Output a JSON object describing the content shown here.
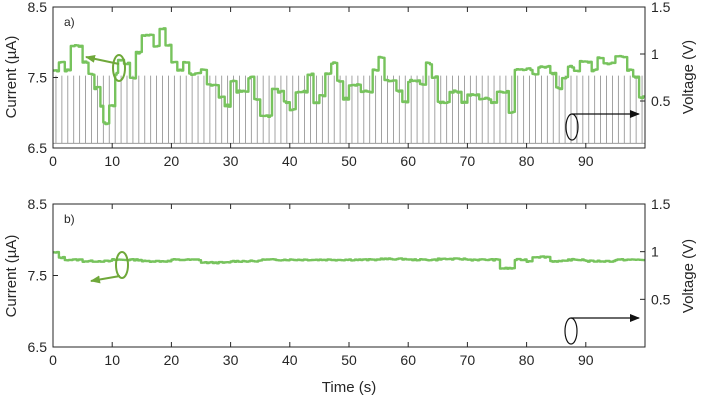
{
  "figure": {
    "xlabel": "Time (s)",
    "current_label": "Current (µA)",
    "voltage_label": "Voltage (V)"
  },
  "colors": {
    "current": "#77c35d",
    "arrow_current": "#6fa83a",
    "voltage": "#8c8c8c",
    "axes": "#262626"
  },
  "chart_data": [
    {
      "type": "line",
      "panel_label": "a)",
      "x_range": [
        0,
        100
      ],
      "xlabel": "",
      "ylabel": "Current (µA)",
      "ylim": [
        6.5,
        8.5
      ],
      "yticks": [
        6.5,
        7.5,
        8.5
      ],
      "y2label": "Voltage (V)",
      "y2lim": [
        0,
        1.5
      ],
      "y2ticks": [
        0.5,
        1,
        1.5
      ],
      "xticks": [
        0,
        10,
        20,
        30,
        40,
        50,
        60,
        70,
        80,
        90
      ],
      "current_steps": [
        [
          0,
          7.6
        ],
        [
          1,
          7.72
        ],
        [
          2,
          7.6
        ],
        [
          3,
          7.95
        ],
        [
          5,
          7.72
        ],
        [
          6,
          7.55
        ],
        [
          7,
          7.35
        ],
        [
          8,
          7.1
        ],
        [
          8.5,
          6.85
        ],
        [
          9.5,
          7.1
        ],
        [
          10.5,
          7.55
        ],
        [
          11,
          7.75
        ],
        [
          12,
          7.7
        ],
        [
          13,
          7.5
        ],
        [
          14,
          7.85
        ],
        [
          15,
          8.1
        ],
        [
          17,
          7.95
        ],
        [
          18,
          8.2
        ],
        [
          19,
          7.95
        ],
        [
          20,
          7.72
        ],
        [
          21,
          7.6
        ],
        [
          22,
          7.72
        ],
        [
          23,
          7.55
        ],
        [
          25,
          7.6
        ],
        [
          26,
          7.4
        ],
        [
          28,
          7.22
        ],
        [
          29,
          7.1
        ],
        [
          30,
          7.45
        ],
        [
          31,
          7.3
        ],
        [
          33,
          7.5
        ],
        [
          34,
          7.2
        ],
        [
          35,
          6.95
        ],
        [
          37,
          7.35
        ],
        [
          38,
          7.3
        ],
        [
          39,
          7.15
        ],
        [
          40,
          7.05
        ],
        [
          41,
          7.3
        ],
        [
          43,
          7.55
        ],
        [
          44,
          7.15
        ],
        [
          45,
          7.25
        ],
        [
          46,
          7.55
        ],
        [
          47,
          7.7
        ],
        [
          48,
          7.45
        ],
        [
          49,
          7.2
        ],
        [
          50,
          7.4
        ],
        [
          52,
          7.3
        ],
        [
          54,
          7.6
        ],
        [
          55,
          7.78
        ],
        [
          56,
          7.45
        ],
        [
          58,
          7.3
        ],
        [
          59,
          7.15
        ],
        [
          60,
          7.45
        ],
        [
          62,
          7.4
        ],
        [
          63,
          7.7
        ],
        [
          64,
          7.5
        ],
        [
          65,
          7.15
        ],
        [
          67,
          7.3
        ],
        [
          69,
          7.15
        ],
        [
          70,
          7.25
        ],
        [
          72,
          7.2
        ],
        [
          74,
          7.15
        ],
        [
          75,
          7.3
        ],
        [
          77,
          7.0
        ],
        [
          78,
          7.62
        ],
        [
          79,
          7.62
        ],
        [
          81,
          7.55
        ],
        [
          82,
          7.65
        ],
        [
          84,
          7.55
        ],
        [
          85,
          7.35
        ],
        [
          86,
          7.5
        ],
        [
          87,
          7.65
        ],
        [
          88,
          7.6
        ],
        [
          89,
          7.72
        ],
        [
          91,
          7.6
        ],
        [
          92,
          7.78
        ],
        [
          93,
          7.7
        ],
        [
          95,
          7.8
        ],
        [
          97,
          7.6
        ],
        [
          98,
          7.5
        ],
        [
          99,
          7.22
        ],
        [
          100,
          7.22
        ]
      ],
      "voltage_pulses": {
        "period_s": 1,
        "high_v": 0.77,
        "low_v": 0.05,
        "start_s": 0.5
      }
    },
    {
      "type": "line",
      "panel_label": "b)",
      "x_range": [
        0,
        100
      ],
      "xlabel": "Time (s)",
      "ylabel": "Current (µA)",
      "ylim": [
        6.5,
        8.5
      ],
      "yticks": [
        6.5,
        7.5,
        8.5
      ],
      "y2label": "Voltage (V)",
      "y2lim": [
        0,
        1.5
      ],
      "y2ticks": [
        0.5,
        1,
        1.5
      ],
      "xticks": [
        0,
        10,
        20,
        30,
        40,
        50,
        60,
        70,
        80,
        90
      ],
      "current_steps": [
        [
          0,
          7.82
        ],
        [
          1,
          7.75
        ],
        [
          2,
          7.72
        ],
        [
          5,
          7.7
        ],
        [
          10,
          7.72
        ],
        [
          15,
          7.7
        ],
        [
          20,
          7.72
        ],
        [
          25,
          7.68
        ],
        [
          30,
          7.7
        ],
        [
          35,
          7.72
        ],
        [
          40,
          7.72
        ],
        [
          45,
          7.72
        ],
        [
          50,
          7.72
        ],
        [
          55,
          7.73
        ],
        [
          60,
          7.72
        ],
        [
          65,
          7.73
        ],
        [
          70,
          7.72
        ],
        [
          75,
          7.72
        ],
        [
          75.5,
          7.6
        ],
        [
          77,
          7.6
        ],
        [
          78,
          7.72
        ],
        [
          80,
          7.7
        ],
        [
          81,
          7.76
        ],
        [
          84,
          7.7
        ],
        [
          87,
          7.72
        ],
        [
          90,
          7.7
        ],
        [
          95,
          7.72
        ],
        [
          100,
          7.72
        ]
      ]
    }
  ]
}
